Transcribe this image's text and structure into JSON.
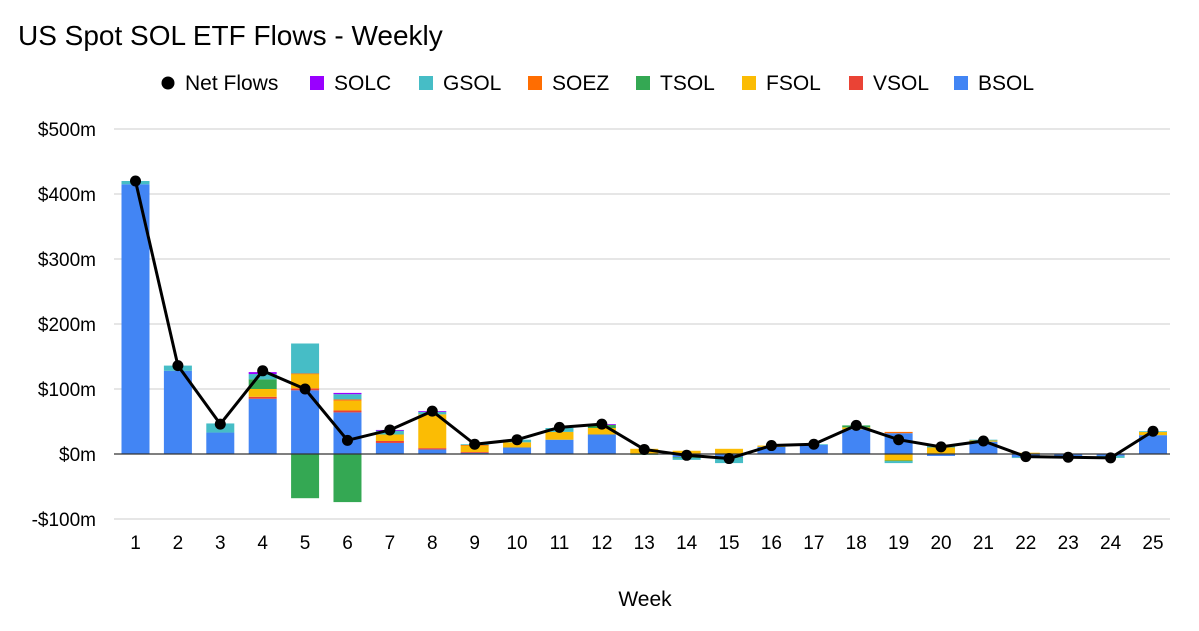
{
  "chart_data": {
    "type": "bar",
    "stacked": true,
    "title": "US Spot SOL ETF Flows - Weekly",
    "xlabel": "Week",
    "ylabel": "",
    "ylim": [
      -100,
      500
    ],
    "yticks": [
      {
        "value": 500,
        "label": "$500m"
      },
      {
        "value": 400,
        "label": "$400m"
      },
      {
        "value": 300,
        "label": "$300m"
      },
      {
        "value": 200,
        "label": "$200m"
      },
      {
        "value": 100,
        "label": "$100m"
      },
      {
        "value": 0,
        "label": "$0m"
      },
      {
        "value": -100,
        "label": "-$100m"
      }
    ],
    "grid": true,
    "legend_position": "top",
    "categories": [
      "1",
      "2",
      "3",
      "4",
      "5",
      "6",
      "7",
      "8",
      "9",
      "10",
      "11",
      "12",
      "13",
      "14",
      "15",
      "16",
      "17",
      "18",
      "19",
      "20",
      "21",
      "22",
      "23",
      "24",
      "25"
    ],
    "line_series": {
      "name": "Net Flows",
      "color": "#000000",
      "values": [
        420,
        136,
        46,
        128,
        100,
        21,
        37,
        66,
        15,
        22,
        41,
        46,
        7,
        -2,
        -7,
        13,
        15,
        44,
        22,
        11,
        20,
        -4,
        -5,
        -6,
        35
      ]
    },
    "series": [
      {
        "name": "BSOL",
        "color": "#4285f4",
        "values": [
          415,
          128,
          33,
          85,
          98,
          64,
          17,
          7,
          2,
          10,
          22,
          30,
          0,
          -5,
          -5,
          11,
          14,
          38,
          32,
          -3,
          19,
          -5,
          -3,
          -3,
          29
        ]
      },
      {
        "name": "VSOL",
        "color": "#ea4335",
        "values": [
          0,
          0,
          0,
          3,
          3,
          3,
          3,
          2,
          1,
          0,
          0,
          0,
          0,
          0,
          0,
          0,
          0,
          0,
          0,
          0,
          0,
          0,
          0,
          0,
          0
        ]
      },
      {
        "name": "FSOL",
        "color": "#fbbc04",
        "values": [
          0,
          0,
          0,
          12,
          22,
          15,
          10,
          52,
          10,
          8,
          12,
          10,
          8,
          5,
          8,
          2,
          0,
          3,
          -10,
          10,
          2,
          2,
          0,
          0,
          5
        ]
      },
      {
        "name": "TSOL",
        "color": "#34a853",
        "values": [
          0,
          0,
          0,
          15,
          -68,
          -74,
          0,
          0,
          0,
          0,
          0,
          5,
          -1,
          -1,
          -1,
          0,
          0,
          3,
          -1,
          0,
          0,
          0,
          0,
          0,
          0
        ]
      },
      {
        "name": "SOEZ",
        "color": "#ff6d01",
        "values": [
          0,
          0,
          0,
          0,
          1,
          2,
          0,
          0,
          1,
          0,
          0,
          0,
          0,
          0,
          0,
          0,
          0,
          0,
          2,
          0,
          0,
          0,
          0,
          0,
          0
        ]
      },
      {
        "name": "GSOL",
        "color": "#46bdc6",
        "values": [
          5,
          8,
          14,
          8,
          46,
          8,
          6,
          4,
          1,
          4,
          6,
          0,
          0,
          -3,
          -8,
          0,
          1,
          0,
          -3,
          3,
          1,
          -1,
          -2,
          -3,
          1
        ]
      },
      {
        "name": "SOLC",
        "color": "#9900ff",
        "values": [
          0,
          0,
          0,
          3,
          0,
          2,
          1,
          1,
          0,
          0,
          0,
          1,
          0,
          0,
          0,
          0,
          0,
          0,
          0,
          1,
          0,
          0,
          0,
          0,
          0
        ]
      }
    ],
    "legend_order": [
      "Net Flows",
      "SOLC",
      "GSOL",
      "SOEZ",
      "TSOL",
      "FSOL",
      "VSOL",
      "BSOL"
    ]
  }
}
